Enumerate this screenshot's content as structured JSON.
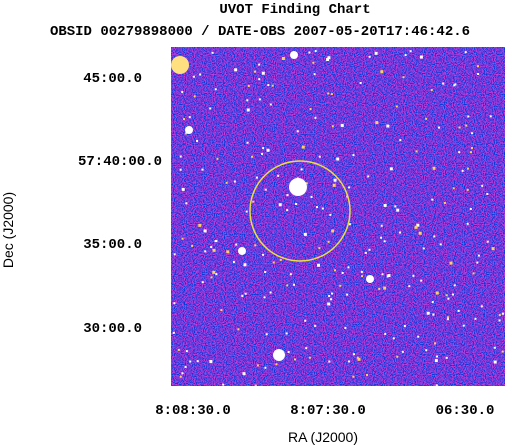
{
  "header": {
    "title": "UVOT Finding Chart",
    "subtitle": "OBSID 00279898000 / DATE-OBS 2007-05-20T17:46:42.6"
  },
  "axes": {
    "xlabel": "RA (J2000)",
    "ylabel": "Dec (J2000)",
    "xtick_labels": [
      "8:08:30.0",
      "8:07:30.0",
      "06:30.0"
    ],
    "ytick_labels": [
      "45:00.0",
      "57:40:00.0",
      "35:00.0",
      "30:00.0"
    ]
  }
}
